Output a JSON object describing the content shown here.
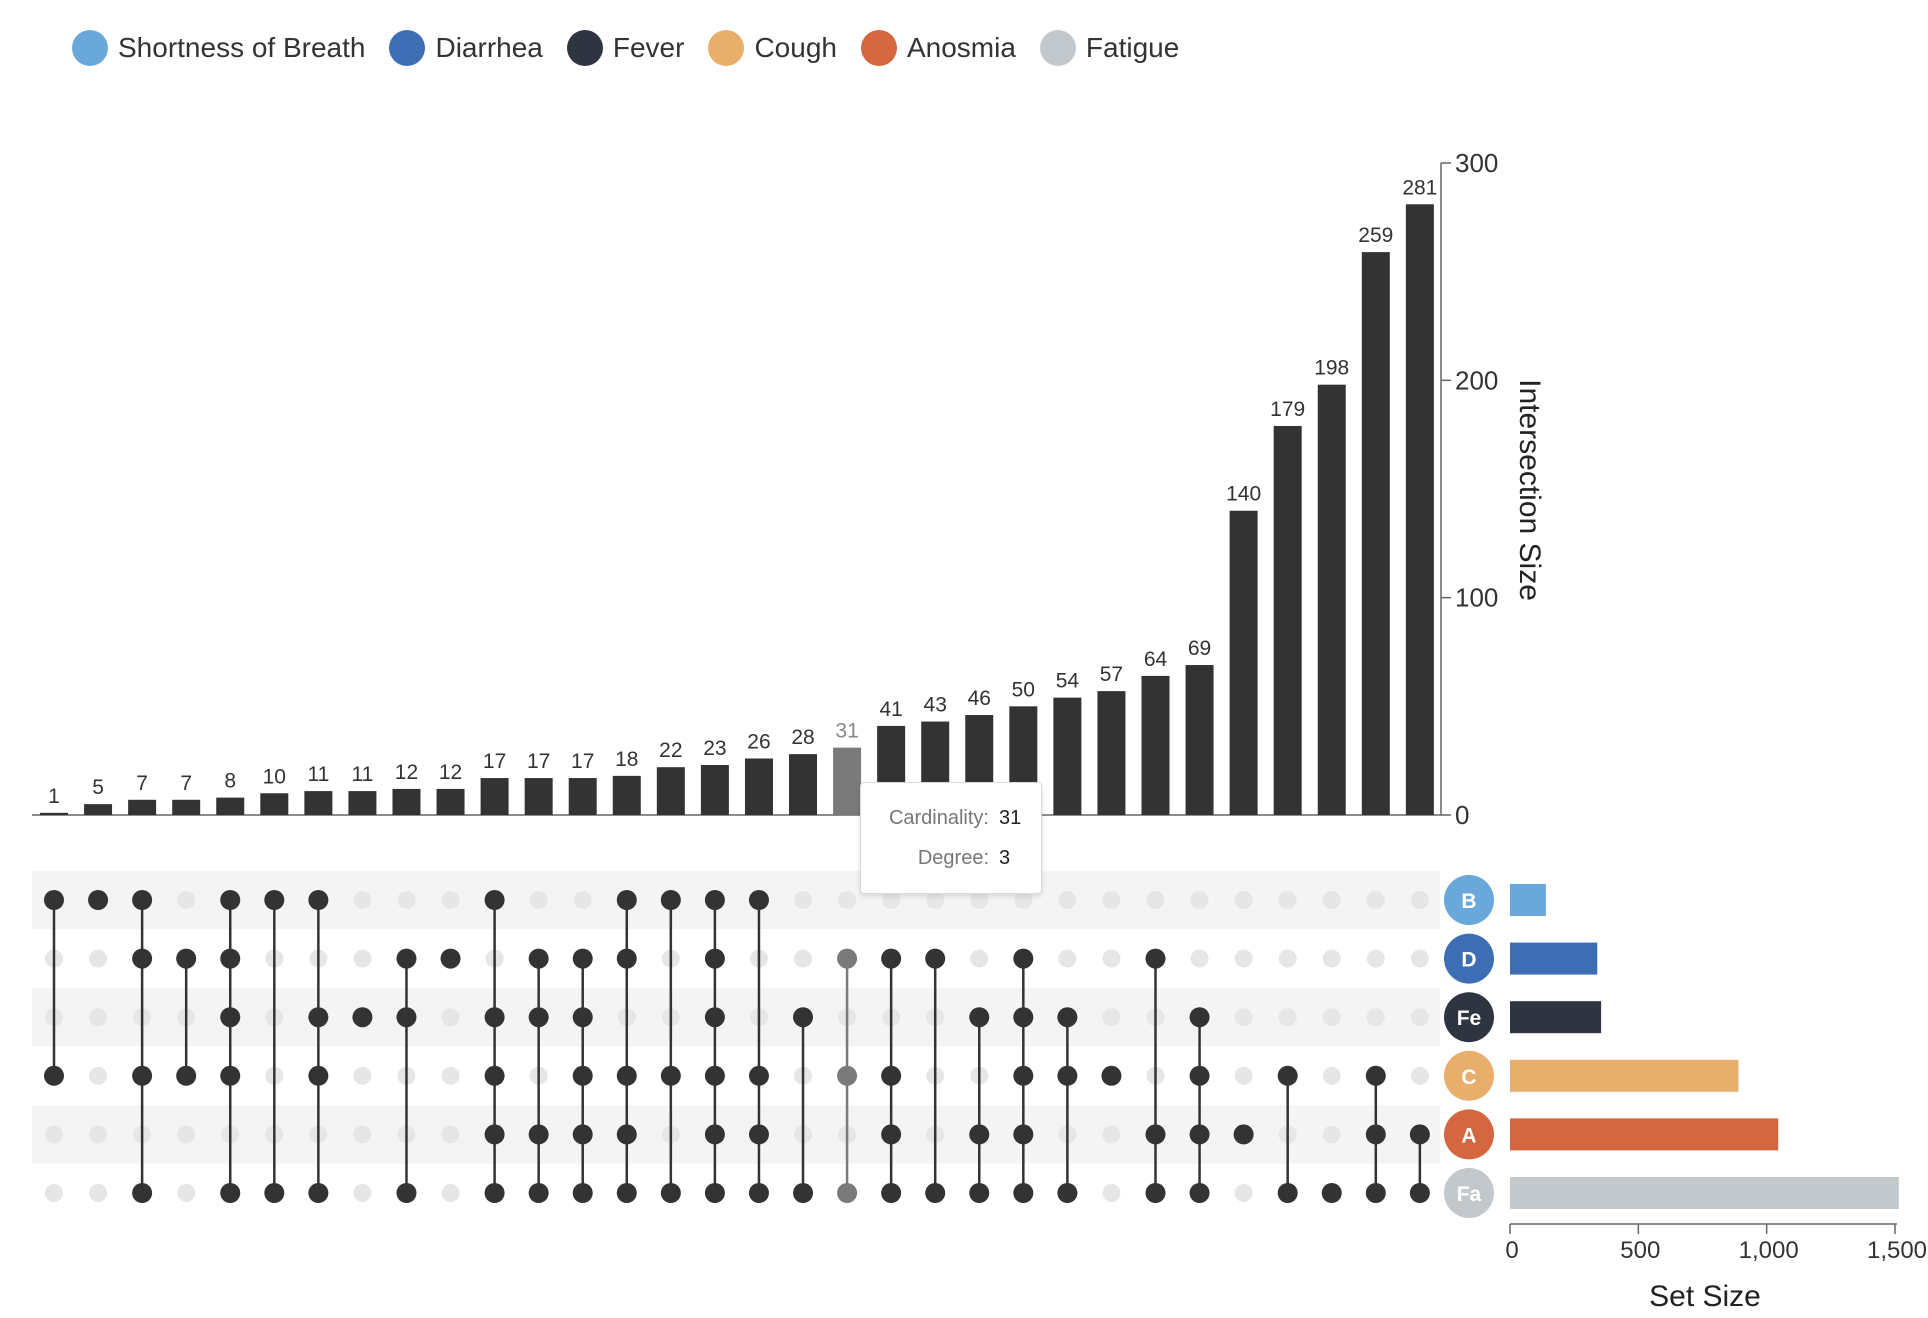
{
  "legend": [
    {
      "label": "Shortness of Breath",
      "color": "#6aa8dc"
    },
    {
      "label": "Diarrhea",
      "color": "#3d6eb4"
    },
    {
      "label": "Fever",
      "color": "#2e3440"
    },
    {
      "label": "Cough",
      "color": "#e8ae6b"
    },
    {
      "label": "Anosmia",
      "color": "#d4673f"
    },
    {
      "label": "Fatigue",
      "color": "#c2c8cb"
    }
  ],
  "tooltip": {
    "cardinality_label": "Cardinality:",
    "cardinality_value": "31",
    "degree_label": "Degree:",
    "degree_value": "3"
  },
  "chart_data": {
    "type": "upset",
    "intersection_axis": {
      "label": "Intersection Size",
      "ticks": [
        0,
        100,
        200,
        300
      ],
      "ylim": [
        0,
        300
      ]
    },
    "set_size_axis": {
      "label": "Set Size",
      "ticks": [
        "0",
        "500",
        "1,000",
        "1,500"
      ],
      "tick_values": [
        0,
        500,
        1000,
        1500
      ]
    },
    "sets": [
      {
        "abbr": "B",
        "name": "Shortness of Breath",
        "size": 140,
        "color": "#6aa8dc"
      },
      {
        "abbr": "D",
        "name": "Diarrhea",
        "size": 340,
        "color": "#3d6eb4"
      },
      {
        "abbr": "Fe",
        "name": "Fever",
        "size": 355,
        "color": "#2e3440"
      },
      {
        "abbr": "C",
        "name": "Cough",
        "size": 890,
        "color": "#e8ae6b"
      },
      {
        "abbr": "A",
        "name": "Anosmia",
        "size": 1045,
        "color": "#d4673f"
      },
      {
        "abbr": "Fa",
        "name": "Fatigue",
        "size": 1515,
        "color": "#c2c8cb"
      }
    ],
    "intersections": [
      {
        "value": 1,
        "sets": [
          0,
          3
        ]
      },
      {
        "value": 5,
        "sets": [
          0
        ]
      },
      {
        "value": 7,
        "sets": [
          0,
          1,
          3,
          5
        ]
      },
      {
        "value": 7,
        "sets": [
          1,
          3
        ]
      },
      {
        "value": 8,
        "sets": [
          0,
          1,
          2,
          3,
          5
        ]
      },
      {
        "value": 10,
        "sets": [
          0,
          5
        ]
      },
      {
        "value": 11,
        "sets": [
          0,
          2,
          3,
          5
        ]
      },
      {
        "value": 11,
        "sets": [
          2
        ]
      },
      {
        "value": 12,
        "sets": [
          1,
          2,
          5
        ]
      },
      {
        "value": 12,
        "sets": [
          1
        ]
      },
      {
        "value": 17,
        "sets": [
          0,
          2,
          3,
          4,
          5
        ]
      },
      {
        "value": 17,
        "sets": [
          1,
          2,
          4,
          5
        ]
      },
      {
        "value": 17,
        "sets": [
          1,
          2,
          3,
          4,
          5
        ]
      },
      {
        "value": 18,
        "sets": [
          0,
          1,
          3,
          4,
          5
        ]
      },
      {
        "value": 22,
        "sets": [
          0,
          3,
          5
        ]
      },
      {
        "value": 23,
        "sets": [
          0,
          1,
          2,
          3,
          4,
          5
        ]
      },
      {
        "value": 26,
        "sets": [
          0,
          3,
          4,
          5
        ]
      },
      {
        "value": 28,
        "sets": [
          2,
          5
        ]
      },
      {
        "value": 31,
        "sets": [
          1,
          3,
          5
        ],
        "highlighted": true
      },
      {
        "value": 41,
        "sets": [
          1,
          3,
          4,
          5
        ]
      },
      {
        "value": 43,
        "sets": [
          1,
          5
        ]
      },
      {
        "value": 46,
        "sets": [
          2,
          4,
          5
        ]
      },
      {
        "value": 50,
        "sets": [
          1,
          2,
          3,
          4,
          5
        ]
      },
      {
        "value": 54,
        "sets": [
          2,
          3,
          5
        ]
      },
      {
        "value": 57,
        "sets": [
          3
        ]
      },
      {
        "value": 64,
        "sets": [
          1,
          4,
          5
        ]
      },
      {
        "value": 69,
        "sets": [
          2,
          3,
          4,
          5
        ]
      },
      {
        "value": 140,
        "sets": [
          4
        ]
      },
      {
        "value": 179,
        "sets": [
          3,
          5
        ]
      },
      {
        "value": 198,
        "sets": [
          5
        ]
      },
      {
        "value": 259,
        "sets": [
          3,
          4,
          5
        ]
      },
      {
        "value": 281,
        "sets": [
          4,
          5
        ]
      }
    ]
  }
}
